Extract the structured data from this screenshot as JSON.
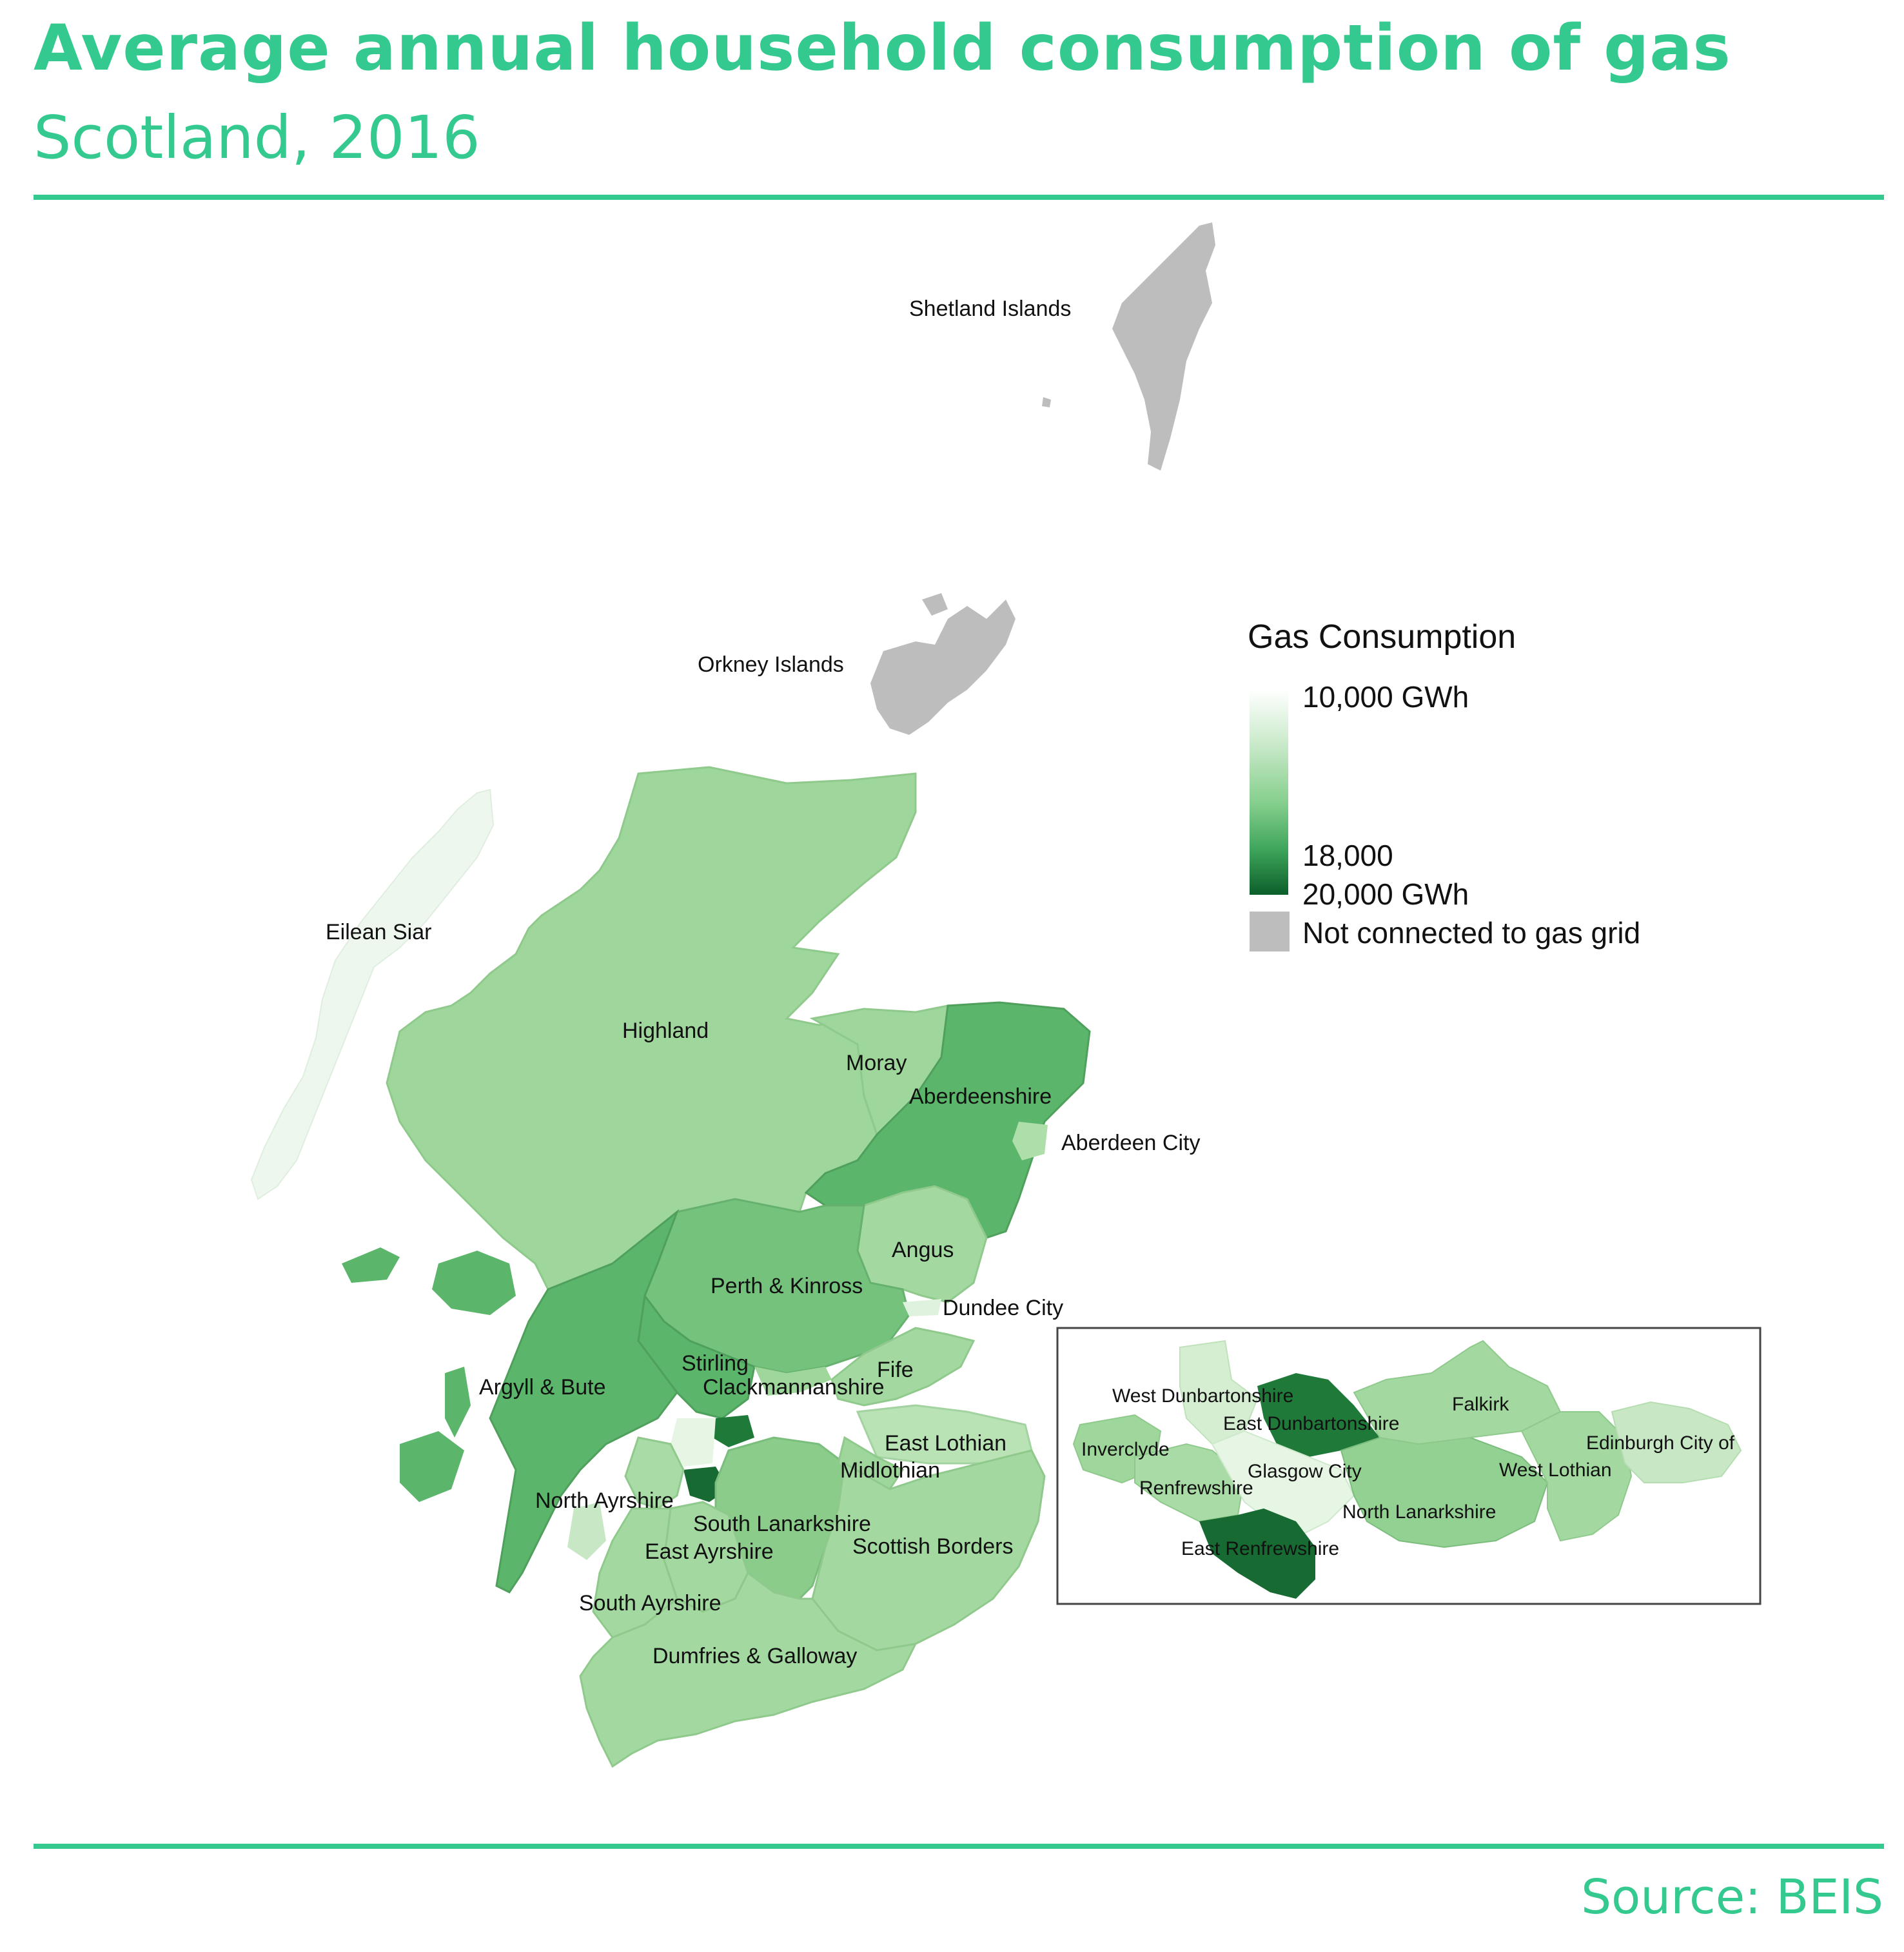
{
  "header": {
    "title": "Average annual household consumption of gas",
    "subtitle": "Scotland, 2016"
  },
  "footer": {
    "source": "Source: BEIS"
  },
  "legend": {
    "title": "Gas Consumption",
    "tick_top": "10,000 GWh",
    "tick_mid": "18,000",
    "tick_bottom": "20,000 GWh",
    "not_connected": "Not connected to gas grid",
    "scale_min": 10000,
    "scale_mid": 18000,
    "scale_max": 20000,
    "color_low": "#f4fbf4",
    "color_high": "#0b5f2a",
    "color_not_connected": "#bdbdbd"
  },
  "regions": {
    "shetland": "Shetland Islands",
    "orkney": "Orkney Islands",
    "eilean_siar": "Eilean Siar",
    "highland": "Highland",
    "moray": "Moray",
    "aberdeenshire": "Aberdeenshire",
    "aberdeen_city": "Aberdeen City",
    "angus": "Angus",
    "perth_kinross": "Perth & Kinross",
    "dundee_city": "Dundee City",
    "stirling": "Stirling",
    "fife": "Fife",
    "argyll_bute": "Argyll & Bute",
    "clackmannanshire": "Clackmannanshire",
    "east_lothian": "East Lothian",
    "midlothian": "Midlothian",
    "north_ayrshire": "North Ayrshire",
    "south_lanarkshire": "South Lanarkshire",
    "east_ayrshire": "East Ayrshire",
    "scottish_borders": "Scottish Borders",
    "south_ayrshire": "South Ayrshire",
    "dumfries_galloway": "Dumfries & Galloway"
  },
  "inset": {
    "west_dunbartonshire": "West Dunbartonshire",
    "east_dunbartonshire": "East Dunbartonshire",
    "falkirk": "Falkirk",
    "inverclyde": "Inverclyde",
    "edinburgh": "Edinburgh City of",
    "glasgow": "Glasgow City",
    "west_lothian": "West Lothian",
    "renfrewshire": "Renfrewshire",
    "north_lanarkshire": "North Lanarkshire",
    "east_renfrewshire": "East Renfrewshire"
  }
}
